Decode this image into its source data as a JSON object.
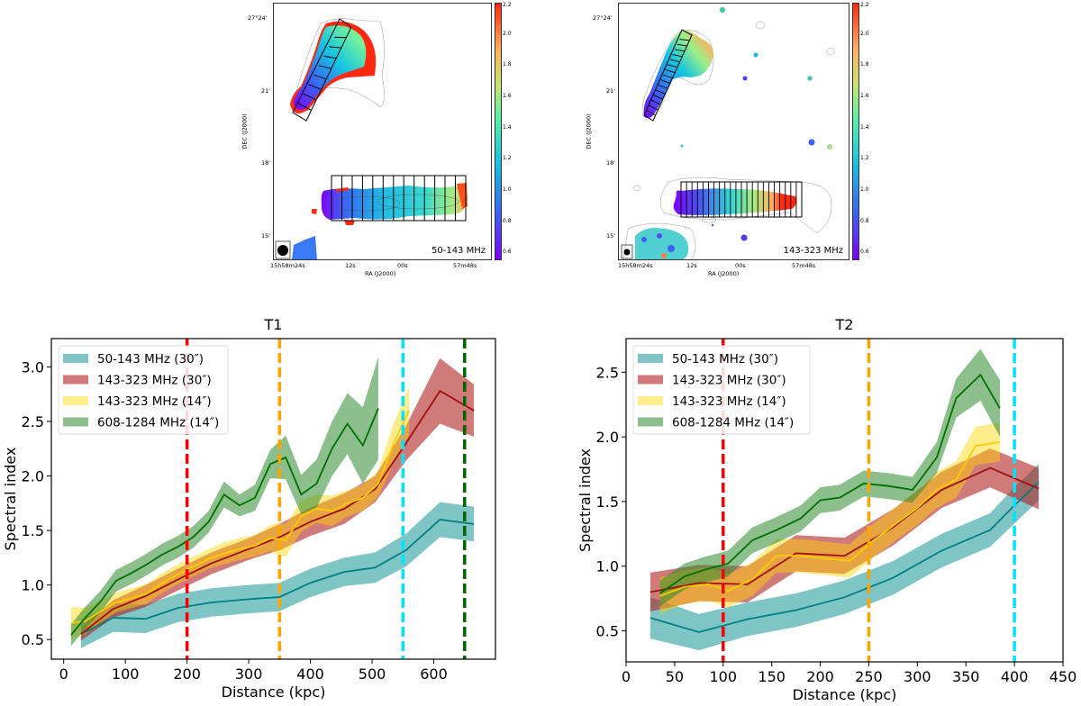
{
  "maps": [
    {
      "label": "50-143 MHz",
      "dec_label": "DEC (J2000)",
      "ra_label": "RA (J2000)",
      "dec_ticks": [
        "27°24'",
        "21'",
        "18'",
        "15'"
      ],
      "ra_ticks": [
        "15h58m24s",
        "12s",
        "00s",
        "57m48s"
      ],
      "colorbar_ticks": [
        "2.2",
        "2.0",
        "1.8",
        "1.6",
        "1.4",
        "1.2",
        "1.0",
        "0.8",
        "0.6"
      ],
      "colorbar_range": [
        0.55,
        2.2
      ],
      "colormap": "rainbow"
    },
    {
      "label": "143-323 MHz",
      "dec_label": "DEC (J2000)",
      "ra_label": "RA (J2000)",
      "dec_ticks": [
        "27°24'",
        "21'",
        "18'",
        "15'"
      ],
      "ra_ticks": [
        "15h58m24s",
        "12s",
        "00s",
        "57m48s"
      ],
      "colorbar_ticks": [
        "2.2",
        "2.0",
        "1.8",
        "1.6",
        "1.4",
        "1.2",
        "1.0",
        "0.8",
        "0.6"
      ],
      "colorbar_range": [
        0.55,
        2.2
      ],
      "colormap": "rainbow"
    }
  ],
  "chart_data": [
    {
      "type": "line",
      "title": "T1",
      "xlabel": "Distance (kpc)",
      "ylabel": "Spectral index",
      "xlim": [
        -20,
        700
      ],
      "ylim": [
        0.32,
        3.26
      ],
      "xticks": [
        0,
        100,
        200,
        300,
        400,
        500,
        600
      ],
      "yticks": [
        0.5,
        1.0,
        1.5,
        2.0,
        2.5,
        3.0
      ],
      "legend_position": "top-left",
      "grid": false,
      "vlines": [
        {
          "x": 200,
          "color": "#ff0000"
        },
        {
          "x": 350,
          "color": "#ffa500"
        },
        {
          "x": 550,
          "color": "#00e5ff"
        },
        {
          "x": 650,
          "color": "#006400"
        }
      ],
      "series": [
        {
          "name": "50-143 MHz (30″)",
          "band_color": "#008b8b",
          "line_color": "#008080",
          "x": [
            28,
            80,
            133,
            185,
            240,
            300,
            350,
            400,
            455,
            505,
            555,
            610,
            665
          ],
          "y": [
            0.55,
            0.7,
            0.69,
            0.79,
            0.84,
            0.87,
            0.89,
            1.02,
            1.12,
            1.16,
            1.32,
            1.6,
            1.56
          ],
          "err": [
            0.13,
            0.13,
            0.13,
            0.13,
            0.13,
            0.13,
            0.13,
            0.13,
            0.13,
            0.14,
            0.15,
            0.16,
            0.16
          ]
        },
        {
          "name": "143-323 MHz (30″)",
          "band_color": "#b22222",
          "line_color": "#a01010",
          "x": [
            28,
            80,
            133,
            185,
            240,
            300,
            350,
            400,
            455,
            505,
            555,
            610,
            665
          ],
          "y": [
            0.55,
            0.78,
            0.9,
            1.05,
            1.2,
            1.33,
            1.44,
            1.58,
            1.7,
            1.88,
            2.3,
            2.78,
            2.6
          ],
          "err": [
            0.06,
            0.08,
            0.1,
            0.1,
            0.1,
            0.1,
            0.12,
            0.13,
            0.14,
            0.12,
            0.16,
            0.3,
            0.24
          ]
        },
        {
          "name": "143-323 MHz (14″)",
          "band_color": "#ffd700",
          "line_color": "#ffcc00",
          "x": [
            12,
            35,
            60,
            85,
            110,
            135,
            160,
            185,
            210,
            235,
            260,
            285,
            310,
            335,
            350,
            360,
            385,
            410,
            435,
            460,
            485,
            510,
            535,
            560
          ],
          "y": [
            0.65,
            0.67,
            0.76,
            0.84,
            0.88,
            0.92,
            1.02,
            1.1,
            1.17,
            1.24,
            1.29,
            1.33,
            1.36,
            1.43,
            1.42,
            1.41,
            1.63,
            1.7,
            1.68,
            1.75,
            1.8,
            1.93,
            2.3,
            2.6
          ],
          "err": [
            0.15,
            0.12,
            0.1,
            0.09,
            0.09,
            0.09,
            0.09,
            0.09,
            0.09,
            0.09,
            0.1,
            0.1,
            0.1,
            0.12,
            0.15,
            0.15,
            0.14,
            0.13,
            0.14,
            0.12,
            0.12,
            0.12,
            0.18,
            0.22
          ]
        },
        {
          "name": "608-1284 MHz (14″)",
          "band_color": "#2e8b2e",
          "line_color": "#007000",
          "x": [
            12,
            35,
            60,
            85,
            110,
            135,
            160,
            185,
            210,
            235,
            260,
            285,
            310,
            335,
            360,
            385,
            410,
            435,
            460,
            485,
            510
          ],
          "y": [
            0.54,
            0.7,
            0.85,
            1.04,
            1.11,
            1.19,
            1.28,
            1.35,
            1.44,
            1.58,
            1.83,
            1.73,
            1.8,
            2.11,
            2.17,
            1.83,
            1.93,
            2.25,
            2.48,
            2.28,
            2.62
          ],
          "err": [
            0.1,
            0.1,
            0.1,
            0.1,
            0.1,
            0.1,
            0.1,
            0.1,
            0.1,
            0.1,
            0.12,
            0.1,
            0.12,
            0.13,
            0.2,
            0.18,
            0.22,
            0.25,
            0.28,
            0.35,
            0.47
          ]
        }
      ]
    },
    {
      "type": "line",
      "title": "T2",
      "xlabel": "Distance (kpc)",
      "ylabel": "Spectral index",
      "xlim": [
        0,
        450
      ],
      "ylim": [
        0.26,
        2.76
      ],
      "xticks": [
        0,
        50,
        100,
        150,
        200,
        250,
        300,
        350,
        400,
        450
      ],
      "yticks": [
        0.5,
        1.0,
        1.5,
        2.0,
        2.5
      ],
      "legend_position": "top-left",
      "grid": false,
      "vlines": [
        {
          "x": 100,
          "color": "#ff0000"
        },
        {
          "x": 250,
          "color": "#ffa500"
        },
        {
          "x": 400,
          "color": "#00e5ff"
        }
      ],
      "series": [
        {
          "name": "50-143 MHz (30″)",
          "band_color": "#008b8b",
          "line_color": "#008080",
          "x": [
            25,
            75,
            125,
            175,
            225,
            275,
            325,
            375,
            400,
            425
          ],
          "y": [
            0.6,
            0.49,
            0.59,
            0.66,
            0.76,
            0.91,
            1.12,
            1.28,
            1.47,
            1.65
          ],
          "err": [
            0.16,
            0.14,
            0.13,
            0.13,
            0.13,
            0.13,
            0.13,
            0.13,
            0.14,
            0.14
          ]
        },
        {
          "name": "143-323 MHz (30″)",
          "band_color": "#b22222",
          "line_color": "#a01010",
          "x": [
            25,
            75,
            125,
            175,
            225,
            275,
            325,
            375,
            425
          ],
          "y": [
            0.8,
            0.87,
            0.86,
            1.1,
            1.08,
            1.3,
            1.59,
            1.76,
            1.6
          ],
          "err": [
            0.15,
            0.14,
            0.14,
            0.14,
            0.14,
            0.14,
            0.14,
            0.15,
            0.16
          ]
        },
        {
          "name": "143-323 MHz (14″)",
          "band_color": "#ffd700",
          "line_color": "#ffcc00",
          "x": [
            35,
            60,
            85,
            105,
            130,
            155,
            180,
            205,
            230,
            255,
            280,
            300,
            320,
            340,
            360,
            385
          ],
          "y": [
            0.77,
            0.84,
            0.86,
            0.81,
            0.9,
            1.08,
            1.08,
            1.06,
            1.04,
            1.2,
            1.34,
            1.45,
            1.59,
            1.67,
            1.93,
            1.96
          ],
          "err": [
            0.14,
            0.13,
            0.13,
            0.13,
            0.13,
            0.13,
            0.13,
            0.13,
            0.13,
            0.13,
            0.13,
            0.13,
            0.14,
            0.14,
            0.15,
            0.15
          ]
        },
        {
          "name": "608-1284 MHz (14″)",
          "band_color": "#2e8b2e",
          "line_color": "#007000",
          "x": [
            35,
            60,
            80,
            105,
            130,
            155,
            180,
            200,
            220,
            245,
            270,
            295,
            320,
            340,
            365,
            385
          ],
          "y": [
            0.79,
            0.92,
            0.97,
            1.02,
            1.2,
            1.28,
            1.37,
            1.51,
            1.53,
            1.64,
            1.62,
            1.59,
            1.84,
            2.3,
            2.48,
            2.22
          ],
          "err": [
            0.1,
            0.1,
            0.1,
            0.1,
            0.1,
            0.1,
            0.1,
            0.1,
            0.1,
            0.1,
            0.1,
            0.1,
            0.12,
            0.15,
            0.2,
            0.22
          ]
        }
      ]
    }
  ]
}
